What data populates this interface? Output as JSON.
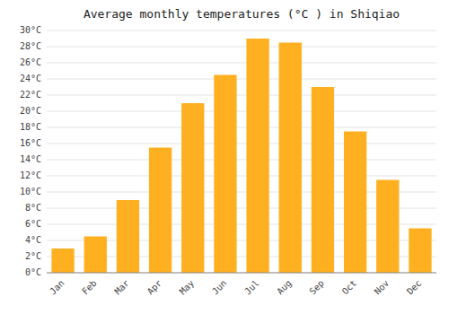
{
  "chart_data": {
    "type": "bar",
    "title": "Average monthly temperatures (°C ) in Shiqiao",
    "categories": [
      "Jan",
      "Feb",
      "Mar",
      "Apr",
      "May",
      "Jun",
      "Jul",
      "Aug",
      "Sep",
      "Oct",
      "Nov",
      "Dec"
    ],
    "values": [
      3,
      4.5,
      9,
      15.5,
      21,
      24.5,
      29,
      28.5,
      23,
      17.5,
      11.5,
      5.5
    ],
    "color": "#FFB020",
    "ylim": [
      0,
      30
    ],
    "yticks": [
      {
        "value": 0,
        "label": "0°C"
      },
      {
        "value": 2,
        "label": "2°C"
      },
      {
        "value": 4,
        "label": "4°C"
      },
      {
        "value": 6,
        "label": "6°C"
      },
      {
        "value": 8,
        "label": "8°C"
      },
      {
        "value": 10,
        "label": "10°C"
      },
      {
        "value": 12,
        "label": "12°C"
      },
      {
        "value": 14,
        "label": "14°C"
      },
      {
        "value": 16,
        "label": "16°C"
      },
      {
        "value": 18,
        "label": "18°C"
      },
      {
        "value": 20,
        "label": "20°C"
      },
      {
        "value": 22,
        "label": "22°C"
      },
      {
        "value": 24,
        "label": "24°C"
      },
      {
        "value": 26,
        "label": "26°C"
      },
      {
        "value": 28,
        "label": "28°C"
      },
      {
        "value": 30,
        "label": "30°C"
      }
    ],
    "grid": true
  }
}
